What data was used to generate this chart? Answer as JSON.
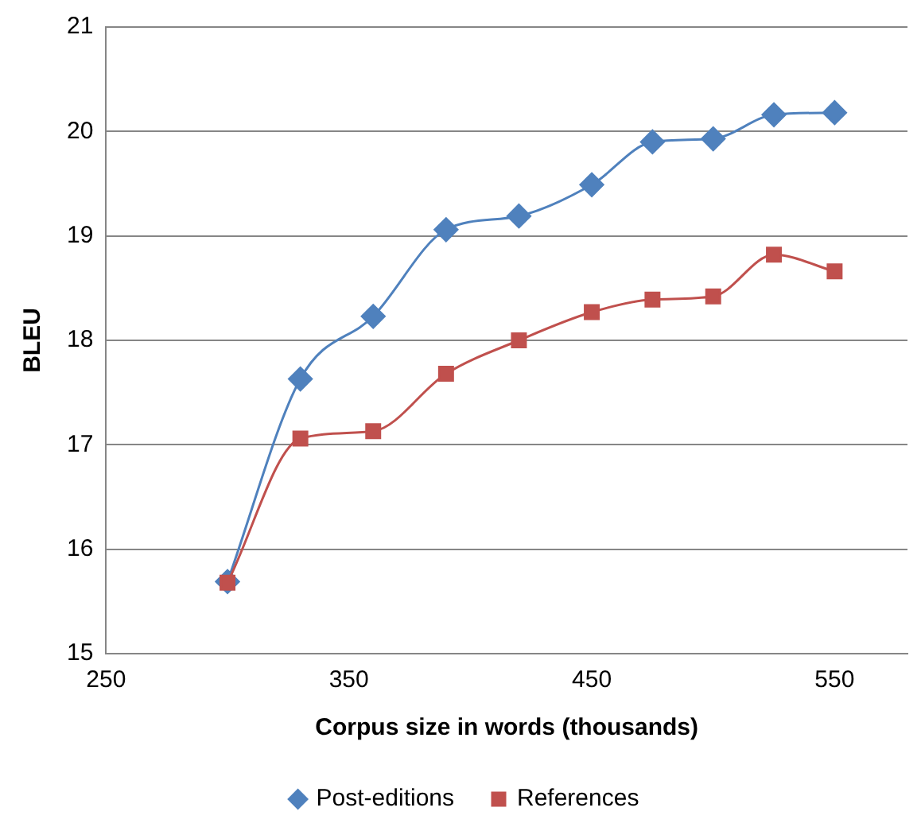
{
  "chart_data": {
    "type": "line",
    "xlabel": "Corpus size in words (thousands)",
    "ylabel": "BLEU",
    "x": [
      300,
      330,
      360,
      390,
      420,
      450,
      475,
      500,
      525,
      550
    ],
    "series": [
      {
        "name": "Post-editions",
        "color": "#4f81bd",
        "marker": "diamond",
        "values": [
          15.69,
          17.63,
          18.23,
          19.06,
          19.19,
          19.49,
          19.9,
          19.93,
          20.16,
          20.18
        ]
      },
      {
        "name": "References",
        "color": "#c0504d",
        "marker": "square",
        "values": [
          15.68,
          17.06,
          17.13,
          17.68,
          18.0,
          18.27,
          18.39,
          18.42,
          18.82,
          18.66
        ]
      }
    ],
    "xlim": [
      250,
      580
    ],
    "xticks": [
      250,
      350,
      450,
      550
    ],
    "ylim": [
      15,
      21
    ],
    "yticks": [
      15,
      16,
      17,
      18,
      19,
      20,
      21
    ],
    "grid": "y",
    "legend": "bottom",
    "line_style": "solid"
  }
}
